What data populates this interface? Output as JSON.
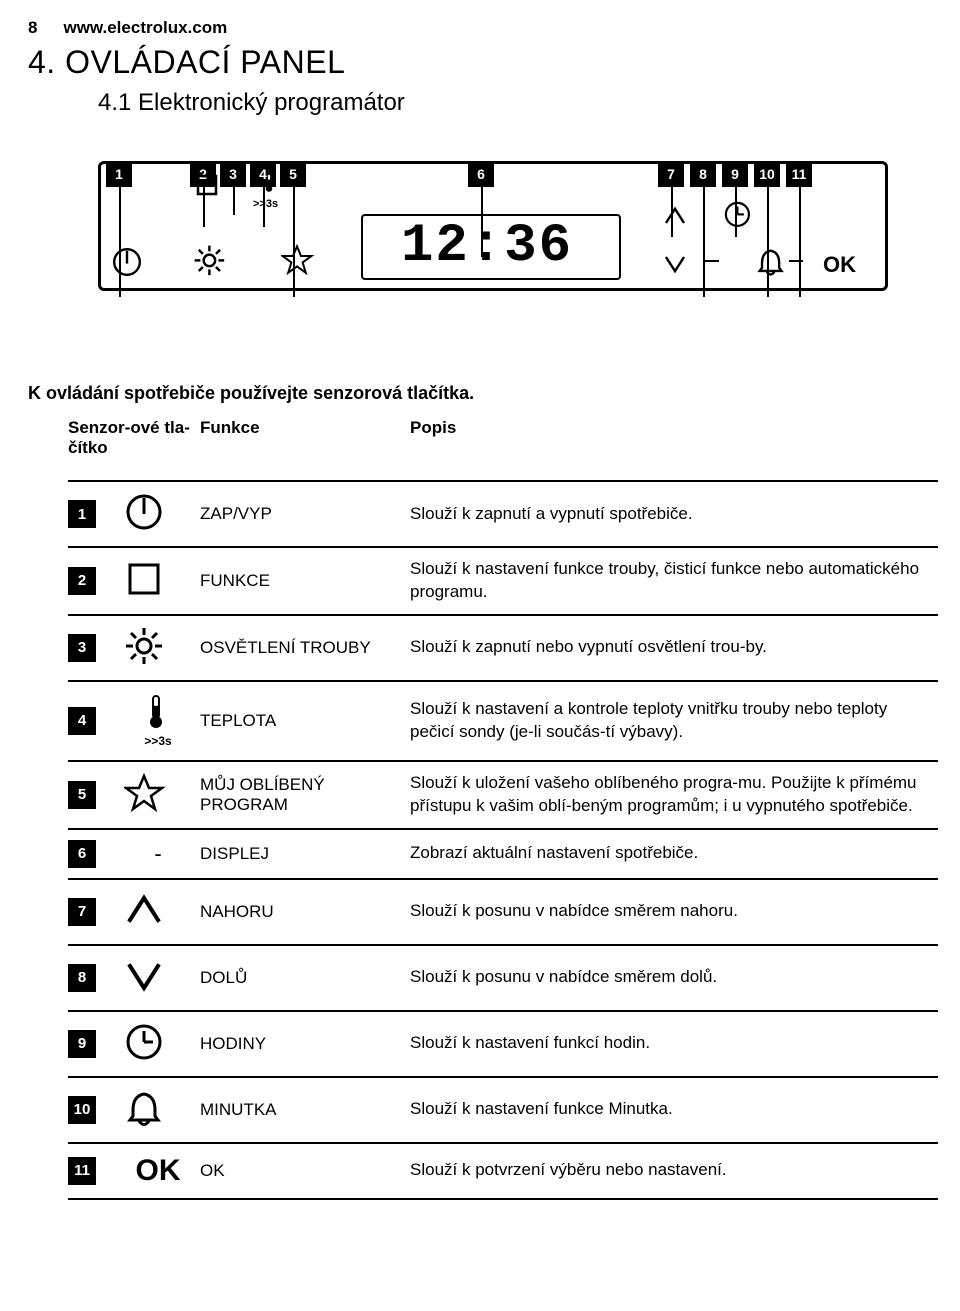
{
  "page_number": "8",
  "url": "www.electrolux.com",
  "section_title": "4. OVLÁDACÍ PANEL",
  "subsection_title": "4.1 Elektronický programátor",
  "diagram": {
    "callouts": [
      "1",
      "2",
      "3",
      "4",
      "5",
      "6",
      "7",
      "8",
      "9",
      "10",
      "11"
    ],
    "time_display": "12:36",
    "ok_label": "OK",
    "sub_3s": ">>3s"
  },
  "intro": "K ovládání spotřebiče používejte senzorová tlačítka.",
  "table_headers": {
    "col_button": "Senzor-ové tla-čítko",
    "col_func": "Funkce",
    "col_desc": "Popis"
  },
  "rows": [
    {
      "n": "1",
      "icon": "power",
      "func": "ZAP/VYP",
      "desc": "Slouží k zapnutí a vypnutí spotřebiče."
    },
    {
      "n": "2",
      "icon": "square",
      "func": "FUNKCE",
      "desc": "Slouží k nastavení funkce trouby, čisticí funkce nebo automatického programu."
    },
    {
      "n": "3",
      "icon": "light",
      "func": "OSVĚTLENÍ TROUBY",
      "desc": "Slouží k zapnutí nebo vypnutí osvětlení trou-by."
    },
    {
      "n": "4",
      "icon": "thermo",
      "func": "TEPLOTA",
      "desc": "Slouží k nastavení a kontrole teploty vnitřku trouby nebo teploty pečicí sondy (je-li součás-tí výbavy)."
    },
    {
      "n": "5",
      "icon": "star",
      "func": "MŮJ OBLÍBENÝ PROGRAM",
      "desc": "Slouží k uložení vašeho oblíbeného progra-mu. Použijte k přímému přístupu k vašim oblí-beným programům; i u vypnutého spotřebiče."
    },
    {
      "n": "6",
      "icon": "dash",
      "func": "DISPLEJ",
      "desc": "Zobrazí aktuální nastavení spotřebiče."
    },
    {
      "n": "7",
      "icon": "up",
      "func": "NAHORU",
      "desc": "Slouží k posunu v nabídce směrem nahoru."
    },
    {
      "n": "8",
      "icon": "down",
      "func": "DOLŮ",
      "desc": "Slouží k posunu v nabídce směrem dolů."
    },
    {
      "n": "9",
      "icon": "clock",
      "func": "HODINY",
      "desc": "Slouží k nastavení funkcí hodin."
    },
    {
      "n": "10",
      "icon": "bell",
      "func": "MINUTKA",
      "desc": "Slouží k nastavení funkce Minutka."
    },
    {
      "n": "11",
      "icon": "ok",
      "func": "OK",
      "desc": "Slouží k potvrzení výběru nebo nastavení."
    }
  ]
}
